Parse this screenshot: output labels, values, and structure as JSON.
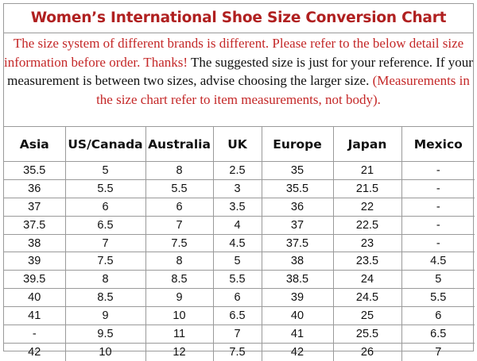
{
  "chart": {
    "title": "Women’s International Shoe Size Conversion Chart",
    "note_red": "The size system of different brands is different. Please refer to the below detail size information before order. Thanks!",
    "note_black": "The suggested size is just for your reference. If your measurement is between two sizes, advise choosing the larger size.",
    "note_red_tail": "(Measurements in the size chart refer to item measurements, not body)."
  },
  "colors": {
    "title": "#b02020",
    "note_red": "#c42727",
    "grid": "#9a9a9a"
  },
  "table": {
    "headers": [
      "Asia",
      "US/Canada",
      "Australia",
      "UK",
      "Europe",
      "Japan",
      "Mexico"
    ],
    "rows": [
      [
        "35.5",
        "5",
        "8",
        "2.5",
        "35",
        "21",
        "-"
      ],
      [
        "36",
        "5.5",
        "5.5",
        "3",
        "35.5",
        "21.5",
        "-"
      ],
      [
        "37",
        "6",
        "6",
        "3.5",
        "36",
        "22",
        "-"
      ],
      [
        "37.5",
        "6.5",
        "7",
        "4",
        "37",
        "22.5",
        "-"
      ],
      [
        "38",
        "7",
        "7.5",
        "4.5",
        "37.5",
        "23",
        "-"
      ],
      [
        "39",
        "7.5",
        "8",
        "5",
        "38",
        "23.5",
        "4.5"
      ],
      [
        "39.5",
        "8",
        "8.5",
        "5.5",
        "38.5",
        "24",
        "5"
      ],
      [
        "40",
        "8.5",
        "9",
        "6",
        "39",
        "24.5",
        "5.5"
      ],
      [
        "41",
        "9",
        "10",
        "6.5",
        "40",
        "25",
        "6"
      ],
      [
        "-",
        "9.5",
        "11",
        "7",
        "41",
        "25.5",
        "6.5"
      ],
      [
        "42",
        "10",
        "12",
        "7.5",
        "42",
        "26",
        "7"
      ]
    ]
  }
}
